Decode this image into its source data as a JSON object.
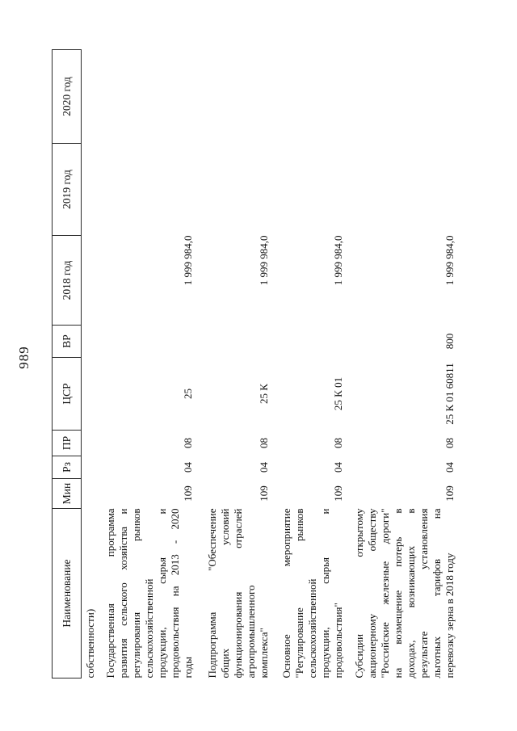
{
  "page_number": "989",
  "table": {
    "headers": [
      "Наименование",
      "Мин",
      "Рз",
      "ПР",
      "ЦСР",
      "ВР",
      "2018 год",
      "2019 год",
      "2020 год"
    ],
    "rows": [
      {
        "name_lines": [
          "собственности)"
        ],
        "min": "",
        "rz": "",
        "pr": "",
        "csr": "",
        "vr": "",
        "y2018": "",
        "y2019": "",
        "y2020": ""
      },
      {
        "name_lines": [
          "Государственная программа",
          "развития сельского хозяйства и",
          "регулирования рынков",
          "сельскохозяйственной",
          "продукции, сырья и",
          "продовольствия на 2013 - 2020",
          "годы"
        ],
        "min": "109",
        "rz": "04",
        "pr": "08",
        "csr": "25",
        "vr": "",
        "y2018": "1 999 984,0",
        "y2019": "",
        "y2020": ""
      },
      {
        "name_lines": [
          "Подпрограмма \"Обеспечение",
          "общих условий",
          "функционирования отраслей",
          "агропромышленного",
          "комплекса\""
        ],
        "min": "109",
        "rz": "04",
        "pr": "08",
        "csr": "25 К",
        "vr": "",
        "y2018": "1 999 984,0",
        "y2019": "",
        "y2020": ""
      },
      {
        "name_lines": [
          "Основное мероприятие",
          "\"Регулирование рынков",
          "сельскохозяйственной",
          "продукции, сырья и",
          "продовольствия\""
        ],
        "min": "109",
        "rz": "04",
        "pr": "08",
        "csr": "25 К 01",
        "vr": "",
        "y2018": "1 999 984,0",
        "y2019": "",
        "y2020": ""
      },
      {
        "name_lines": [
          "Субсидии открытому",
          "акционерному обществу",
          "\"Российские железные дороги\"",
          "на возмещение потерь в",
          "доходах, возникающих в",
          "результате установления",
          "льготных тарифов на",
          "перевозку зерна в 2018 году"
        ],
        "min": "109",
        "rz": "04",
        "pr": "08",
        "csr": "25 К 01 60811",
        "vr": "800",
        "y2018": "1 999 984,0",
        "y2019": "",
        "y2020": ""
      }
    ]
  }
}
